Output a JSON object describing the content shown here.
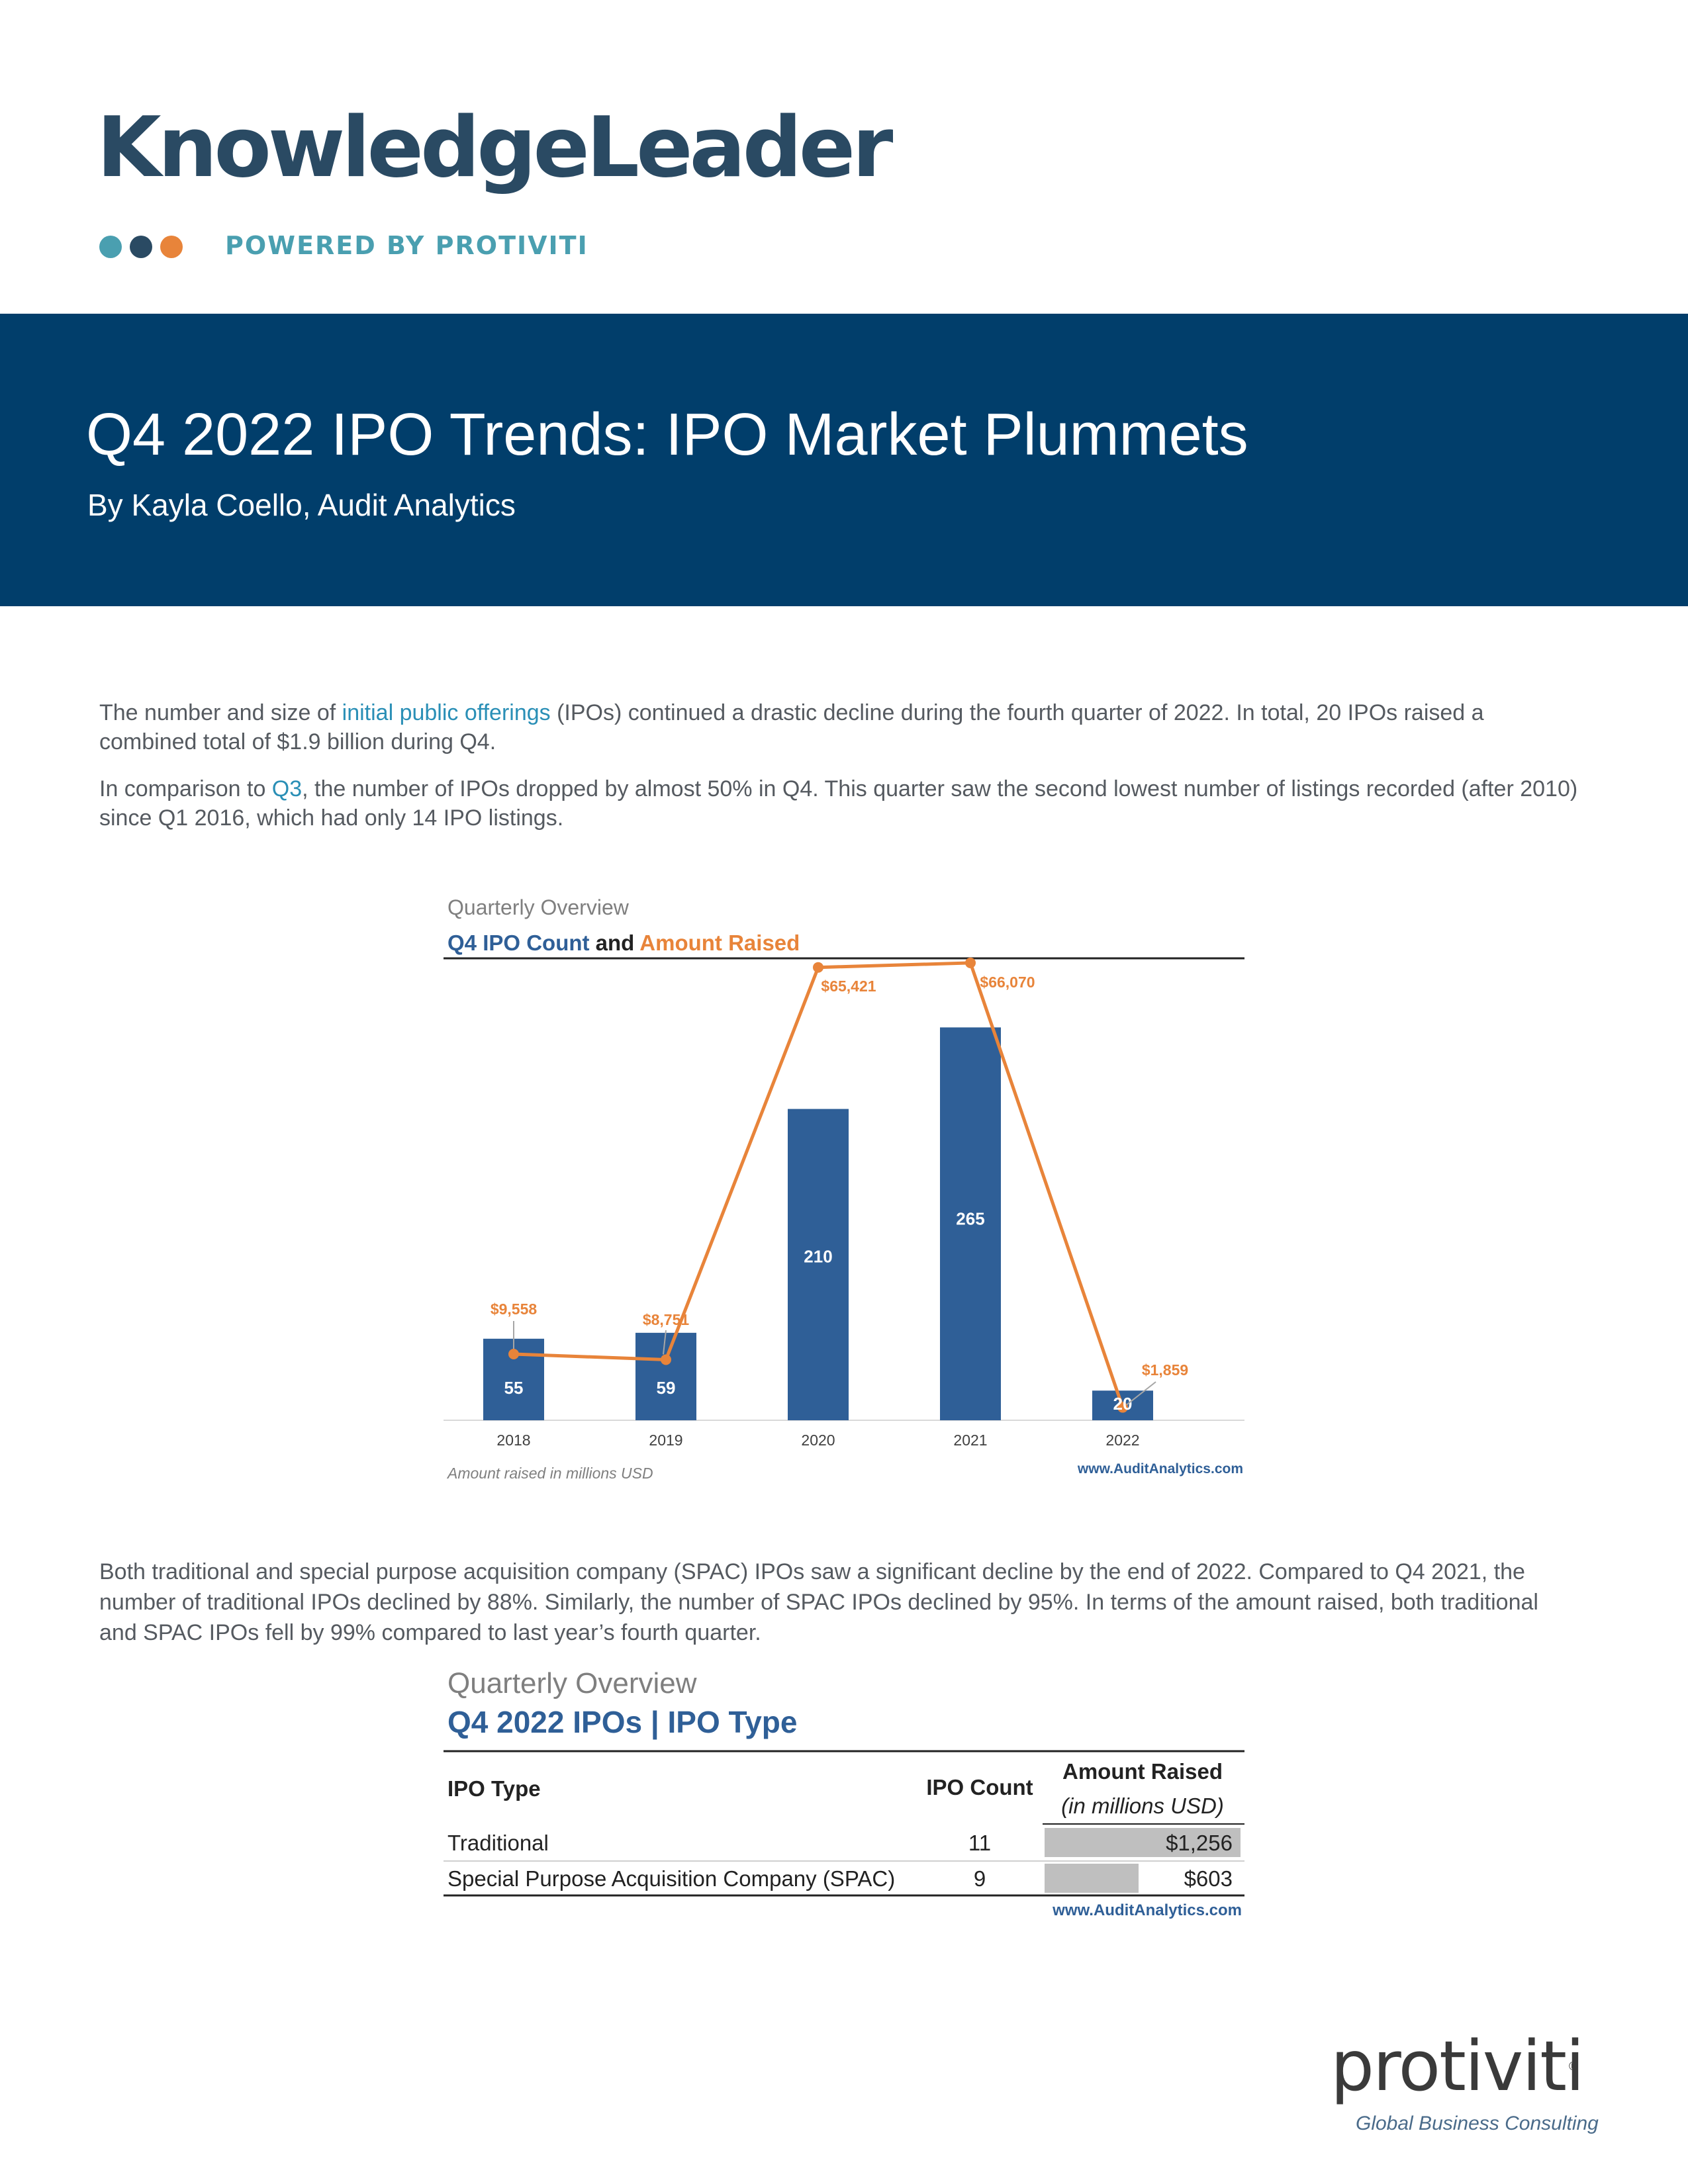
{
  "brand": {
    "wordmark": "KnowledgeLeader",
    "powered_by": "POWERED BY PROTIVITI",
    "colors": {
      "navy": "#2a4a63",
      "teal": "#4a9fb0",
      "orange": "#e8843a",
      "banner": "#013e6b"
    }
  },
  "header": {
    "title": "Q4 2022 IPO Trends: IPO Market Plummets",
    "byline": "By Kayla Coello, Audit Analytics"
  },
  "intro": {
    "p1_pre": "The number and size of ",
    "p1_link": "initial public offerings",
    "p1_post": " (IPOs) continued a drastic decline during the fourth quarter of 2022. In total, 20 IPOs raised a combined total of $1.9 billion during Q4.",
    "p2_pre": "In comparison to ",
    "p2_link": "Q3",
    "p2_post": ", the number of IPOs dropped by almost 50% in Q4. This quarter saw the second lowest number of listings recorded (after 2010) since Q1 2016, which had only 14 IPO listings."
  },
  "chart_data": {
    "type": "bar",
    "supertitle": "Quarterly Overview",
    "title_part1": "Q4 IPO Count",
    "title_joiner": " and ",
    "title_part2": "Amount Raised",
    "categories": [
      "2018",
      "2019",
      "2020",
      "2021",
      "2022"
    ],
    "series": [
      {
        "values": [
          55,
          59,
          210,
          265,
          20
        ],
        "color": "#2f5f97"
      },
      {
        "values": [
          9558,
          8751,
          65421,
          66070,
          1859
        ],
        "color": "#e8843a",
        "kind": "line"
      }
    ],
    "bar_labels": [
      "55",
      "59",
      "210",
      "265",
      "20"
    ],
    "line_labels": [
      "$9,558",
      "$8,751",
      "$65,421",
      "$66,070",
      "$1,859"
    ],
    "footnote": "Amount raised in millions USD",
    "source": "www.AuditAnalytics.com"
  },
  "body": {
    "p3": "Both traditional and special purpose acquisition company (SPAC) IPOs saw a significant decline by the end of 2022. Compared to Q4 2021, the number of traditional IPOs declined by 88%. Similarly, the number of SPAC IPOs declined by 95%. In terms of the amount raised, both traditional and SPAC IPOs fell by 99% compared to last year’s fourth quarter."
  },
  "table": {
    "supertitle": "Quarterly Overview",
    "title": "Q4 2022 IPOs | IPO Type",
    "col_type": "IPO Type",
    "col_count": "IPO Count",
    "col_amount": "Amount Raised",
    "col_amount_sub": "(in millions USD)",
    "rows": [
      {
        "type": "Traditional",
        "count": "11",
        "amount": "$1,256",
        "amount_value": 1256
      },
      {
        "type": "Special Purpose Acquisition Company (SPAC)",
        "count": "9",
        "amount": "$603",
        "amount_value": 603
      }
    ],
    "source": "www.AuditAnalytics.com"
  },
  "footer": {
    "logo": "protiviti",
    "tagline": "Global Business Consulting",
    "registered": "®"
  }
}
